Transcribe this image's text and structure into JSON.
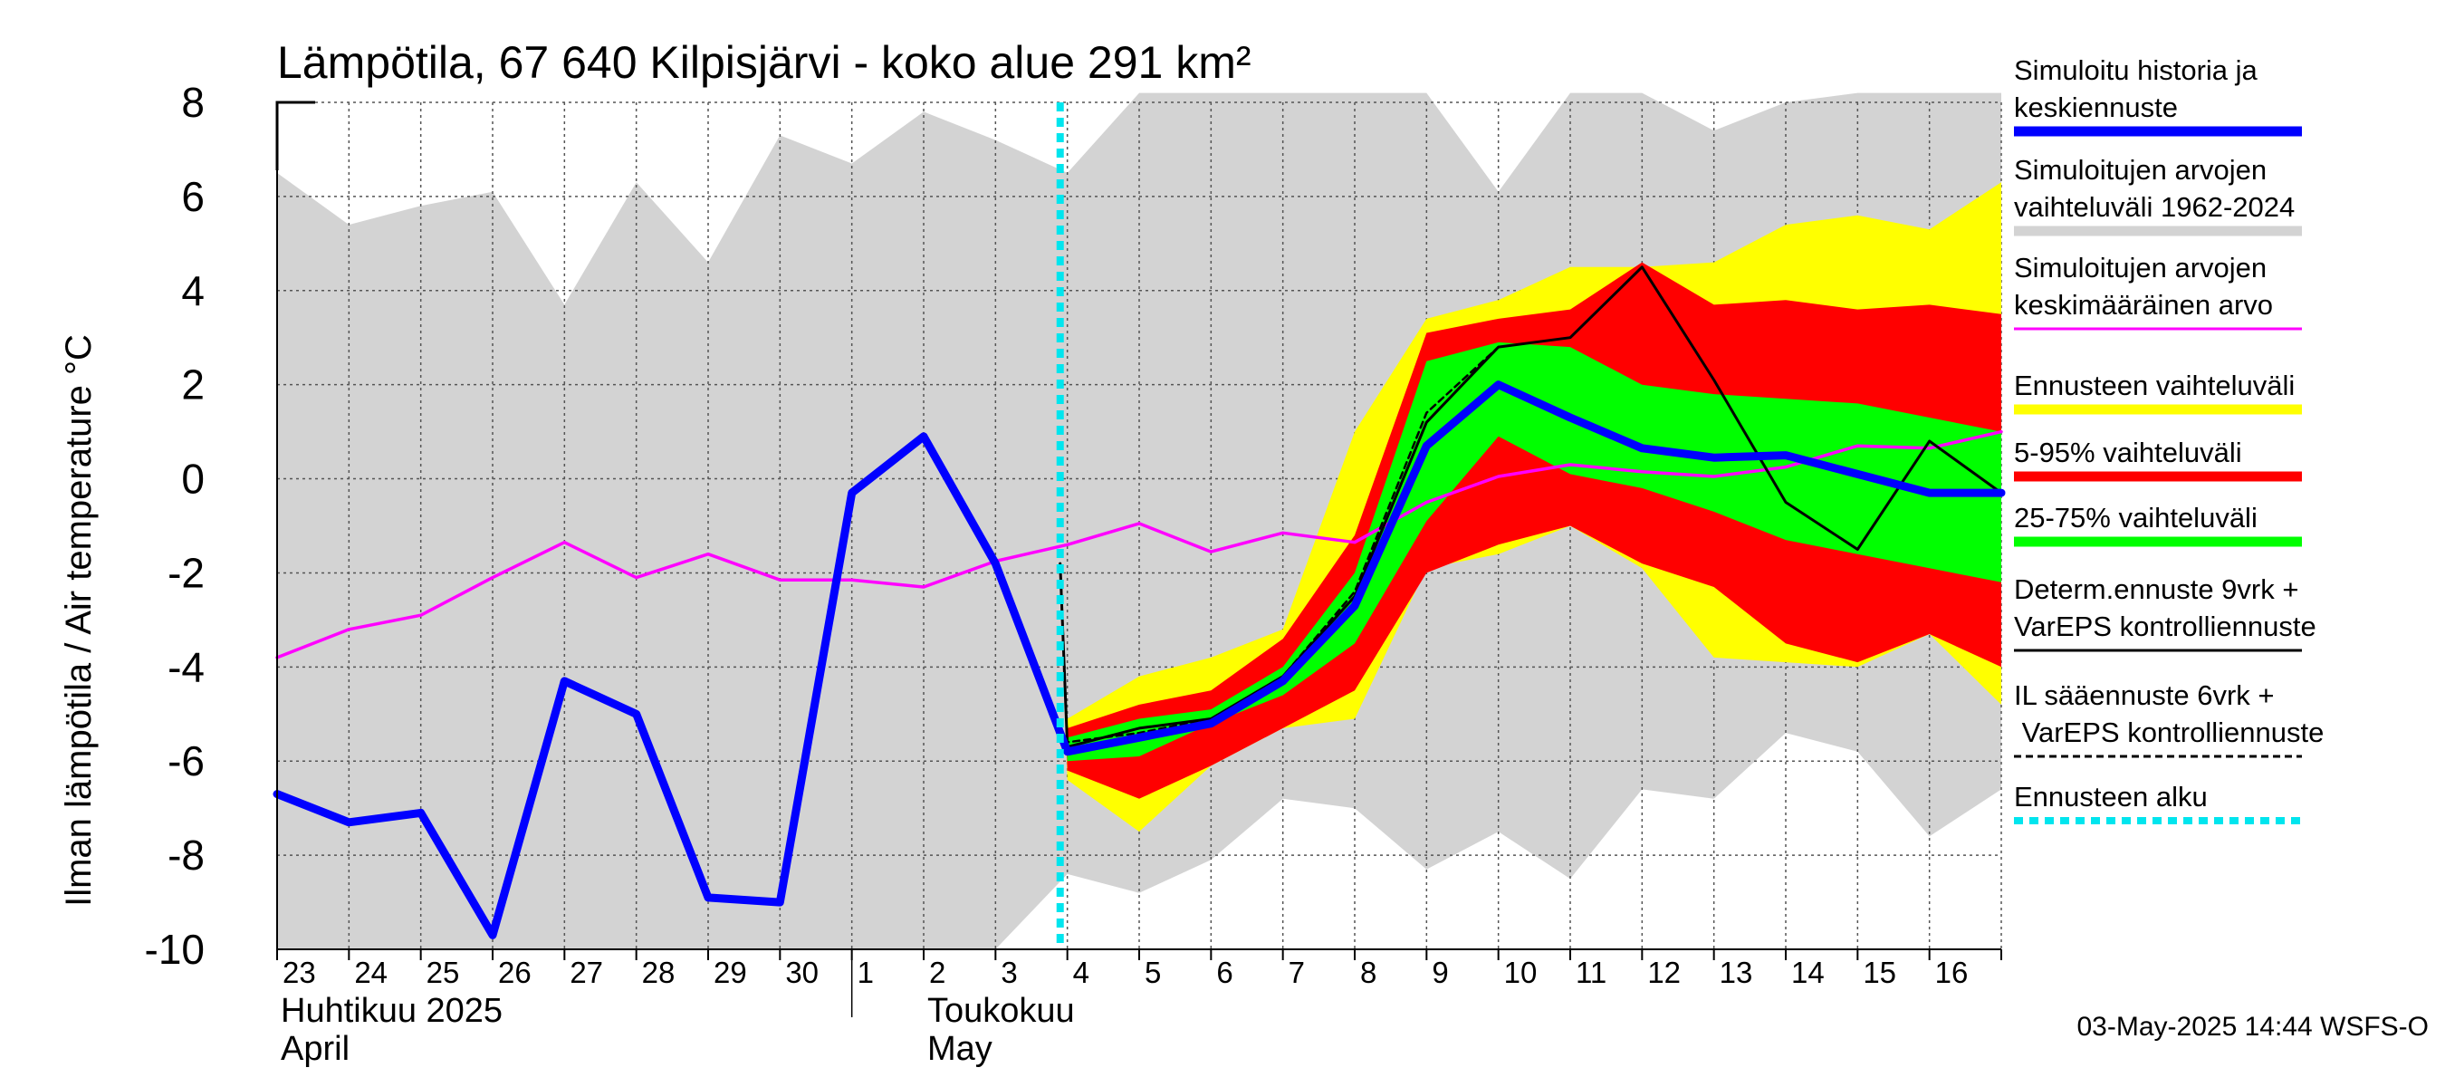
{
  "chart_data": {
    "type": "line",
    "title": "Lämpötila, 67 640 Kilpisjärvi - koko alue 291 km²",
    "ylabel": "Ilman lämpötila / Air temperature   °C",
    "ylim": [
      -10,
      8
    ],
    "yticks": [
      "8",
      "6",
      "4",
      "2",
      "0",
      "-2",
      "-4",
      "-6",
      "-8",
      "-10"
    ],
    "x_day_labels": [
      "23",
      "24",
      "25",
      "26",
      "27",
      "28",
      "29",
      "30",
      "1",
      "2",
      "3",
      "4",
      "5",
      "6",
      "7",
      "8",
      "9",
      "10",
      "11",
      "12",
      "13",
      "14",
      "15",
      "16"
    ],
    "month_labels": [
      {
        "fi": "Huhtikuu  2025",
        "en": "April"
      },
      {
        "fi": "Toukokuu",
        "en": "May"
      }
    ],
    "x_start": "2025-04-23",
    "forecast_start": 10.9,
    "timestamp": "03-May-2025 14:44 WSFS-O",
    "colors": {
      "history": "#0000ff",
      "range_1962": "#d3d3d3",
      "mean": "#ff00ff",
      "forecast_range": "#ffff00",
      "p5_95": "#ff0000",
      "p25_75": "#00ff00",
      "determ": "#000000",
      "forecast_start": "#00e5ee"
    },
    "legend": [
      {
        "label": "Simuloitu historia ja keskiennuste",
        "color": "#0000ff",
        "style": "thick"
      },
      {
        "label": "Simuloitujen arvojen vaihteluväli 1962-2024",
        "color": "#d3d3d3",
        "style": "thick"
      },
      {
        "label": "Simuloitujen arvojen keskimääräinen arvo",
        "color": "#ff00ff",
        "style": "thin"
      },
      {
        "label": "Ennusteen vaihteluväli",
        "color": "#ffff00",
        "style": "thick"
      },
      {
        "label": "5-95% vaihteluväli",
        "color": "#ff0000",
        "style": "thick"
      },
      {
        "label": "25-75% vaihteluväli",
        "color": "#00ff00",
        "style": "thick"
      },
      {
        "label": "Determ.ennuste 9vrk + VarEPS kontrolliennuste",
        "color": "#000000",
        "style": "thin"
      },
      {
        "label": "IL sääennuste 6vrk  + VarEPS kontrolliennuste",
        "color": "#000000",
        "style": "dashed"
      },
      {
        "label": "Ennusteen alku",
        "color": "#00e5ee",
        "style": "dotted"
      }
    ],
    "series": [
      {
        "name": "Simuloitujen arvojen vaihteluväli 1962-2024 (upper)",
        "x": [
          0,
          1,
          2,
          3,
          4,
          5,
          6,
          7,
          8,
          9,
          10,
          11,
          12,
          13,
          14,
          15,
          16,
          17,
          18,
          19,
          20,
          21,
          22,
          23,
          24
        ],
        "values": [
          6.5,
          5.4,
          5.8,
          6.1,
          3.7,
          6.3,
          4.6,
          7.3,
          6.7,
          7.8,
          7.2,
          6.5,
          8.2,
          8.2,
          8.2,
          8.2,
          8.2,
          6.1,
          8.2,
          8.2,
          7.4,
          8.0,
          8.2,
          8.2,
          8.2
        ]
      },
      {
        "name": "Simuloitujen arvojen vaihteluväli 1962-2024 (lower)",
        "x": [
          0,
          1,
          2,
          3,
          4,
          5,
          6,
          7,
          8,
          9,
          10,
          11,
          12,
          13,
          14,
          15,
          16,
          17,
          18,
          19,
          20,
          21,
          22,
          23,
          24
        ],
        "values": [
          -10,
          -10,
          -10,
          -10,
          -10,
          -10,
          -10,
          -10,
          -10,
          -10,
          -10,
          -8.4,
          -8.8,
          -8.1,
          -6.8,
          -7.0,
          -8.3,
          -7.5,
          -8.5,
          -6.6,
          -6.8,
          -5.4,
          -5.8,
          -7.6,
          -6.6
        ]
      },
      {
        "name": "Simuloitujen arvojen keskimääräinen arvo",
        "x": [
          0,
          1,
          2,
          3,
          4,
          5,
          6,
          7,
          8,
          9,
          10,
          11,
          12,
          13,
          14,
          15,
          16,
          17,
          18,
          19,
          20,
          21,
          22,
          23,
          24
        ],
        "values": [
          -3.8,
          -3.2,
          -2.9,
          -2.1,
          -1.35,
          -2.1,
          -1.6,
          -2.15,
          -2.15,
          -2.3,
          -1.75,
          -1.4,
          -0.95,
          -1.55,
          -1.15,
          -1.35,
          -0.5,
          0.05,
          0.3,
          0.15,
          0.05,
          0.25,
          0.7,
          0.65,
          1.0
        ]
      },
      {
        "name": "Ennusteen vaihteluväli (upper)",
        "x": [
          10.9,
          11,
          12,
          13,
          14,
          15,
          16,
          17,
          18,
          19,
          20,
          21,
          22,
          23,
          24
        ],
        "values": [
          -1.8,
          -5.1,
          -4.2,
          -3.8,
          -3.2,
          1.0,
          3.4,
          3.8,
          4.5,
          4.5,
          4.6,
          5.4,
          5.6,
          5.3,
          6.3
        ]
      },
      {
        "name": "Ennusteen vaihteluväli (lower)",
        "x": [
          10.9,
          11,
          12,
          13,
          14,
          15,
          16,
          17,
          18,
          19,
          20,
          21,
          22,
          23,
          24
        ],
        "values": [
          -1.8,
          -6.4,
          -7.5,
          -6.1,
          -5.3,
          -5.1,
          -1.9,
          -1.6,
          -1.0,
          -1.9,
          -3.8,
          -3.9,
          -4.0,
          -3.3,
          -4.8
        ]
      },
      {
        "name": "5-95% vaihteluväli (upper)",
        "x": [
          10.9,
          11,
          12,
          13,
          14,
          15,
          16,
          17,
          18,
          19,
          20,
          21,
          22,
          23,
          24
        ],
        "values": [
          -1.8,
          -5.3,
          -4.8,
          -4.5,
          -3.4,
          -1.2,
          3.1,
          3.4,
          3.6,
          4.6,
          3.7,
          3.8,
          3.6,
          3.7,
          3.5
        ]
      },
      {
        "name": "5-95% vaihteluväli (lower)",
        "x": [
          10.9,
          11,
          12,
          13,
          14,
          15,
          16,
          17,
          18,
          19,
          20,
          21,
          22,
          23,
          24
        ],
        "values": [
          -1.8,
          -6.2,
          -6.8,
          -6.1,
          -5.3,
          -4.5,
          -2.0,
          -1.4,
          -1.0,
          -1.8,
          -2.3,
          -3.5,
          -3.9,
          -3.3,
          -4.0
        ]
      },
      {
        "name": "25-75% vaihteluväli (upper)",
        "x": [
          10.9,
          11,
          12,
          13,
          14,
          15,
          16,
          17,
          18,
          19,
          20,
          21,
          22,
          23,
          24
        ],
        "values": [
          -1.8,
          -5.5,
          -5.1,
          -4.9,
          -4.0,
          -2.0,
          2.5,
          2.9,
          2.8,
          2.0,
          1.8,
          1.7,
          1.6,
          1.3,
          1.0
        ]
      },
      {
        "name": "25-75% vaihteluväli (lower)",
        "x": [
          10.9,
          11,
          12,
          13,
          14,
          15,
          16,
          17,
          18,
          19,
          20,
          21,
          22,
          23,
          24
        ],
        "values": [
          -1.8,
          -6.0,
          -5.9,
          -5.2,
          -4.6,
          -3.5,
          -0.9,
          0.9,
          0.1,
          -0.2,
          -0.7,
          -1.3,
          -1.6,
          -1.9,
          -2.2
        ]
      },
      {
        "name": "Determ.ennuste 9vrk + VarEPS kontrolliennuste",
        "x": [
          10.9,
          11,
          12,
          13,
          14,
          15,
          16,
          17,
          18,
          19,
          20,
          21,
          22,
          23,
          24
        ],
        "values": [
          -1.8,
          -5.7,
          -5.3,
          -5.1,
          -4.2,
          -2.5,
          1.2,
          2.8,
          3.0,
          4.5,
          2.1,
          -0.5,
          -1.5,
          0.8,
          -0.3
        ]
      },
      {
        "name": "IL sääennuste 6vrk  + VarEPS kontrolliennuste",
        "x": [
          10.9,
          11,
          12,
          13,
          14,
          15,
          16,
          17
        ],
        "values": [
          -1.8,
          -5.6,
          -5.4,
          -5.1,
          -4.2,
          -2.4,
          1.4,
          2.8
        ]
      },
      {
        "name": "Simuloitu historia ja keskiennuste",
        "x": [
          0,
          1,
          2,
          3,
          4,
          5,
          6,
          7,
          8,
          9,
          10,
          11,
          12,
          13,
          14,
          15,
          16,
          17,
          18,
          19,
          20,
          21,
          22,
          23,
          24
        ],
        "values": [
          -6.7,
          -7.3,
          -7.1,
          -9.7,
          -4.3,
          -5.0,
          -8.9,
          -9.0,
          -0.3,
          0.9,
          -1.8,
          -5.8,
          -5.5,
          -5.2,
          -4.3,
          -2.7,
          0.7,
          2.0,
          1.3,
          0.65,
          0.45,
          0.5,
          0.1,
          -0.3,
          -0.3
        ]
      }
    ]
  }
}
